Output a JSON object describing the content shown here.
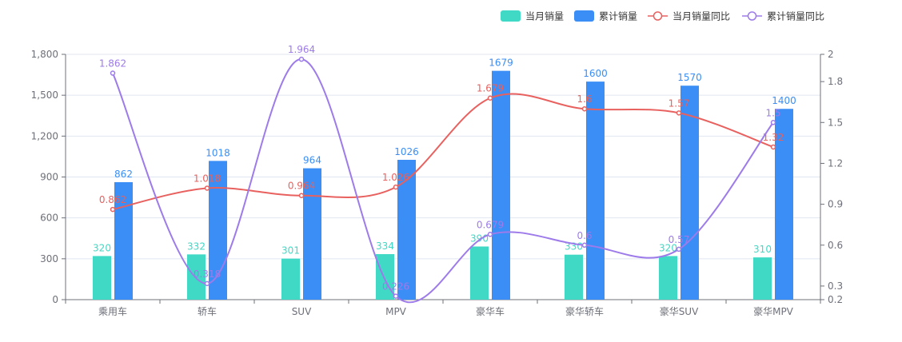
{
  "chart_data": {
    "type": "bar",
    "categories": [
      "乘用车",
      "轿车",
      "SUV",
      "MPV",
      "豪华车",
      "豪华轿车",
      "豪华SUV",
      "豪华MPV"
    ],
    "series": [
      {
        "name": "当月销量",
        "type": "bar",
        "axis": "left",
        "color": "#3fd9c5",
        "values": [
          320,
          332,
          301,
          334,
          390,
          330,
          320,
          310
        ]
      },
      {
        "name": "累计销量",
        "type": "bar",
        "axis": "left",
        "color": "#3a8ef6",
        "values": [
          862,
          1018,
          964,
          1026,
          1679,
          1600,
          1570,
          1400
        ]
      },
      {
        "name": "当月销量同比",
        "type": "line",
        "axis": "right",
        "color": "#e8615f",
        "values": [
          0.862,
          1.018,
          0.964,
          1.026,
          1.679,
          1.6,
          1.57,
          1.32
        ],
        "labels": [
          "0.862",
          "1.018",
          "0.964",
          "1.026",
          "1.679",
          "1.6",
          "1.57",
          "1.32"
        ]
      },
      {
        "name": "累计销量同比",
        "type": "line",
        "axis": "right",
        "color": "#9d7bea",
        "values": [
          1.862,
          0.318,
          1.964,
          0.226,
          0.679,
          0.6,
          0.57,
          1.5
        ],
        "labels": [
          "1.862",
          "0.318",
          "1.964",
          "0.226",
          "0.679",
          "0.6",
          "0.57",
          "1.5"
        ]
      }
    ],
    "y_left": {
      "min": 0,
      "max": 1800,
      "ticks": [
        0,
        300,
        600,
        900,
        1200,
        1500,
        1800
      ],
      "tick_labels": [
        "0",
        "300",
        "600",
        "900",
        "1,200",
        "1,500",
        "1,800"
      ]
    },
    "y_right": {
      "min": 0.2,
      "max": 2,
      "ticks": [
        0.2,
        0.3,
        0.6,
        0.9,
        1.2,
        1.5,
        1.8,
        2
      ],
      "tick_labels": [
        "0.2",
        "0.3",
        "0.6",
        "0.9",
        "1.2",
        "1.5",
        "1.8",
        "2"
      ]
    },
    "grid": true,
    "legend_position": "top-right",
    "title": "",
    "xlabel": "",
    "ylabel": ""
  }
}
